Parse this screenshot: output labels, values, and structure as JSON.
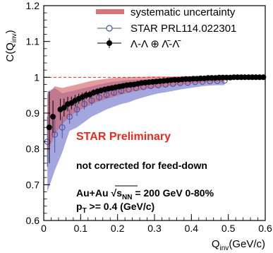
{
  "chart_data": {
    "type": "scatter",
    "xlabel": "Q",
    "xlabel_sub": "inv",
    "xlabel_unit": "(GeV/c)",
    "ylabel": "C(Q",
    "ylabel_sub": "inv",
    "ylabel_close": ")",
    "xlim": [
      0,
      0.6
    ],
    "ylim": [
      0.6,
      1.2
    ],
    "x_ticks": [
      0,
      0.1,
      0.2,
      0.3,
      0.4,
      0.5,
      0.6
    ],
    "x_tick_labels": [
      "0",
      "0.1",
      "0.2",
      "0.3",
      "0.4",
      "0.5",
      "0.6"
    ],
    "y_ticks": [
      0.6,
      0.7,
      0.8,
      0.9,
      1.0,
      1.1,
      1.2
    ],
    "y_tick_labels": [
      "0.6",
      "0.7",
      "0.8",
      "0.9",
      "1",
      "1.1",
      "1.2"
    ],
    "reference_line_y": 1.0,
    "legend": {
      "placement": "top-right",
      "items": [
        {
          "label": "systematic uncertainty",
          "kind": "band"
        },
        {
          "label": "STAR PRL114.022301",
          "kind": "open-marker"
        },
        {
          "label": "Λ-Λ ⊕ Λ̄-Λ̄",
          "kind": "filled-marker"
        }
      ]
    },
    "series": [
      {
        "name": "Λ-Λ ⊕ Λ̄-Λ̄",
        "marker": "filled-circle",
        "color": "#000000",
        "x": [
          0.015,
          0.025,
          0.045,
          0.055,
          0.065,
          0.075,
          0.085,
          0.095,
          0.105,
          0.115,
          0.125,
          0.135,
          0.145,
          0.155,
          0.165,
          0.175,
          0.185,
          0.195,
          0.205,
          0.215,
          0.225,
          0.235,
          0.245,
          0.255,
          0.265,
          0.275,
          0.285,
          0.295,
          0.305,
          0.315,
          0.325,
          0.335,
          0.345,
          0.355,
          0.365,
          0.375,
          0.385,
          0.395,
          0.405,
          0.415,
          0.425,
          0.435,
          0.445,
          0.455,
          0.465,
          0.475,
          0.485,
          0.495,
          0.505,
          0.515,
          0.525,
          0.535,
          0.545,
          0.555,
          0.565,
          0.575,
          0.585,
          0.595
        ],
        "y": [
          0.86,
          0.89,
          0.91,
          0.915,
          0.925,
          0.928,
          0.935,
          0.94,
          0.945,
          0.95,
          0.952,
          0.957,
          0.96,
          0.963,
          0.966,
          0.968,
          0.97,
          0.972,
          0.974,
          0.976,
          0.978,
          0.979,
          0.98,
          0.982,
          0.984,
          0.985,
          0.986,
          0.987,
          0.988,
          0.989,
          0.99,
          0.991,
          0.992,
          0.993,
          0.993,
          0.994,
          0.995,
          0.995,
          0.996,
          0.996,
          0.997,
          0.997,
          0.998,
          0.998,
          0.998,
          0.999,
          0.999,
          0.999,
          0.999,
          1.0,
          1.0,
          1.0,
          1.0,
          1.0,
          1.0,
          1.0,
          1.0,
          1.0
        ],
        "yerr": [
          0.1,
          0.045,
          0.03,
          0.025,
          0.02,
          0.018,
          0.016,
          0.014,
          0.012,
          0.011,
          0.01,
          0.009,
          0.009,
          0.008,
          0.008,
          0.007,
          0.007,
          0.006,
          0.006,
          0.006,
          0.005,
          0.005,
          0.005,
          0.005,
          0.004,
          0.004,
          0.004,
          0.004,
          0.004,
          0.003,
          0.003,
          0.003,
          0.003,
          0.003,
          0.003,
          0.003,
          0.003,
          0.003,
          0.003,
          0.003,
          0.003,
          0.003,
          0.003,
          0.003,
          0.003,
          0.003,
          0.003,
          0.003,
          0.003,
          0.003,
          0.003,
          0.003,
          0.003,
          0.003,
          0.003,
          0.003,
          0.003,
          0.003
        ]
      },
      {
        "name": "STAR PRL114.022301",
        "marker": "open-circle",
        "color": "#4a50a8",
        "x": [
          0.01,
          0.03,
          0.05,
          0.07,
          0.09,
          0.11,
          0.13,
          0.15,
          0.17,
          0.19,
          0.21,
          0.23,
          0.25,
          0.27,
          0.29,
          0.31,
          0.33,
          0.35,
          0.37,
          0.39,
          0.41,
          0.43,
          0.45,
          0.47,
          0.49
        ],
        "y": [
          0.82,
          0.84,
          0.86,
          0.89,
          0.91,
          0.925,
          0.935,
          0.944,
          0.951,
          0.957,
          0.962,
          0.966,
          0.97,
          0.973,
          0.976,
          0.978,
          0.98,
          0.982,
          0.984,
          0.985,
          0.987,
          0.988,
          0.989,
          0.99,
          0.991
        ],
        "yerr": [
          0.07,
          0.05,
          0.03,
          0.02,
          0.018,
          0.015,
          0.013,
          0.011,
          0.01,
          0.009,
          0.008,
          0.007,
          0.006,
          0.006,
          0.005,
          0.005,
          0.005,
          0.004,
          0.004,
          0.004,
          0.004,
          0.004,
          0.004,
          0.004,
          0.004
        ]
      }
    ],
    "bands": [
      {
        "name": "STAR PRL114.022301 systematic",
        "color": "#8489d2",
        "x": [
          0.01,
          0.03,
          0.05,
          0.07,
          0.09,
          0.11,
          0.13,
          0.15,
          0.17,
          0.19,
          0.21,
          0.23,
          0.25,
          0.27,
          0.29,
          0.31,
          0.33,
          0.35,
          0.37,
          0.39,
          0.41,
          0.43,
          0.45,
          0.47,
          0.49
        ],
        "low": [
          0.68,
          0.74,
          0.79,
          0.85,
          0.86,
          0.875,
          0.89,
          0.9,
          0.91,
          0.918,
          0.925,
          0.93,
          0.938,
          0.944,
          0.95,
          0.955,
          0.958,
          0.962,
          0.966,
          0.969,
          0.972,
          0.975,
          0.977,
          0.978,
          0.978
        ],
        "high": [
          0.96,
          0.97,
          0.955,
          0.96,
          0.965,
          0.97,
          0.975,
          0.98,
          0.984,
          0.988,
          0.99,
          0.992,
          0.993,
          0.994,
          0.995,
          0.996,
          0.996,
          0.997,
          0.997,
          0.998,
          0.998,
          0.998,
          0.999,
          0.999,
          0.999
        ]
      },
      {
        "name": "systematic uncertainty",
        "color": "#d45a5e",
        "x": [
          0.01,
          0.03,
          0.05,
          0.07,
          0.09,
          0.11,
          0.13,
          0.15,
          0.17,
          0.19,
          0.21,
          0.23,
          0.25,
          0.27,
          0.29,
          0.31,
          0.33,
          0.35,
          0.37,
          0.39,
          0.41,
          0.43,
          0.45,
          0.47,
          0.49
        ],
        "low": [
          0.79,
          0.84,
          0.87,
          0.89,
          0.905,
          0.915,
          0.925,
          0.933,
          0.94,
          0.946,
          0.952,
          0.957,
          0.962,
          0.966,
          0.969,
          0.972,
          0.975,
          0.977,
          0.979,
          0.981,
          0.983,
          0.985,
          0.986,
          0.987,
          0.988
        ],
        "high": [
          0.95,
          0.975,
          0.97,
          0.975,
          0.98,
          0.985,
          0.99,
          0.993,
          0.996,
          0.998,
          0.999,
          1.0,
          1.001,
          1.001,
          1.002,
          1.002,
          1.002,
          1.002,
          1.003,
          1.003,
          1.003,
          1.003,
          1.003,
          1.003,
          1.003
        ]
      }
    ],
    "annotations": {
      "preliminary": "STAR Preliminary",
      "preliminary_color": "#e8291f",
      "feeddown": "not corrected for feed-down",
      "system": "Au+Au",
      "sqrt_sym": "√",
      "s_var": "s",
      "s_sub": "NN",
      "energy": " = 200 GeV 0-80%",
      "pt_var": "p",
      "pt_sub": "T",
      "pt_cut": " >= 0.4 (GeV/c)"
    }
  }
}
